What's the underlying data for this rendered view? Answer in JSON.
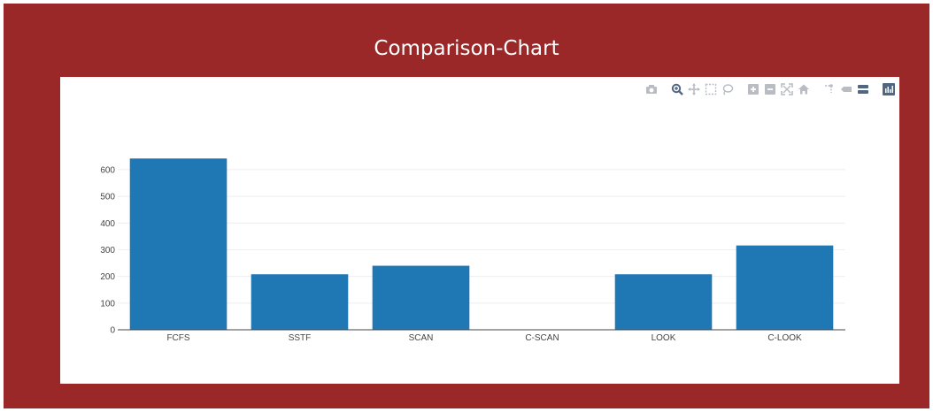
{
  "page": {
    "title": "Comparison-Chart"
  },
  "colors": {
    "frame": "#9a2828",
    "bar": "#1f77b4",
    "grid": "#eeeeee",
    "axis": "#444444",
    "modebar": "#b9bcc2",
    "modebar_active": "#506784"
  },
  "modebar": {
    "buttons": [
      {
        "icon": "camera-icon",
        "label": "Download plot as a png"
      },
      {
        "icon": "zoom-icon",
        "label": "Zoom"
      },
      {
        "icon": "pan-icon",
        "label": "Pan"
      },
      {
        "icon": "box-select-icon",
        "label": "Box Select"
      },
      {
        "icon": "lasso-select-icon",
        "label": "Lasso Select"
      },
      {
        "icon": "zoom-in-icon",
        "label": "Zoom in"
      },
      {
        "icon": "zoom-out-icon",
        "label": "Zoom out"
      },
      {
        "icon": "autoscale-icon",
        "label": "Autoscale"
      },
      {
        "icon": "home-icon",
        "label": "Reset axes"
      },
      {
        "icon": "spike-lines-icon",
        "label": "Toggle Spike Lines"
      },
      {
        "icon": "hover-closest-icon",
        "label": "Show closest data on hover"
      },
      {
        "icon": "hover-compare-icon",
        "label": "Compare data on hover"
      },
      {
        "icon": "plotly-logo-icon",
        "label": "Produced with Plotly"
      }
    ]
  },
  "chart_data": {
    "type": "bar",
    "title": "Comparison-Chart",
    "categories": [
      "FCFS",
      "SSTF",
      "SCAN",
      "C-SCAN",
      "LOOK",
      "C-LOOK"
    ],
    "values": [
      642,
      208,
      240,
      0,
      208,
      316
    ],
    "yticks": [
      "0",
      "100",
      "200",
      "300",
      "400",
      "500",
      "600"
    ],
    "ylim": [
      0,
      676
    ],
    "grid": true,
    "xlabel": "",
    "ylabel": ""
  }
}
